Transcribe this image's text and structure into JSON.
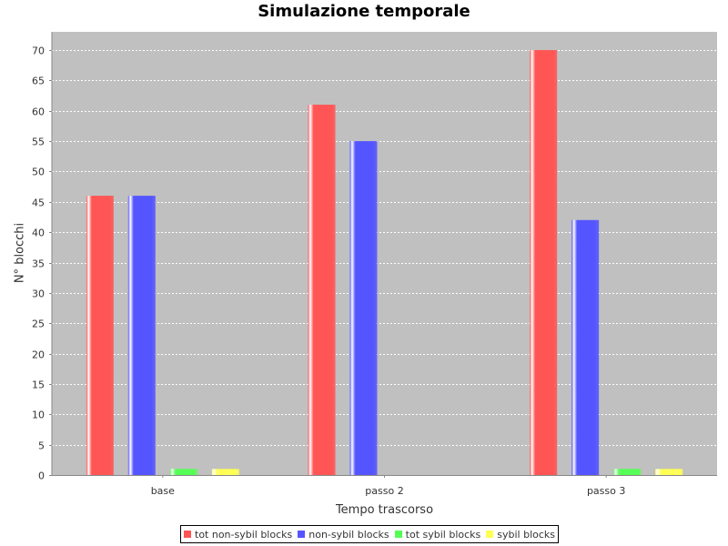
{
  "chart_data": {
    "type": "bar",
    "title": "Simulazione temporale",
    "xlabel": "Tempo trascorso",
    "ylabel": "N° blocchi",
    "categories": [
      "base",
      "passo 2",
      "passo 3"
    ],
    "series": [
      {
        "name": "tot non-sybil blocks",
        "color": "#ff5555",
        "values": [
          46,
          61,
          70
        ]
      },
      {
        "name": "non-sybil blocks",
        "color": "#5555ff",
        "values": [
          46,
          55,
          42
        ]
      },
      {
        "name": "tot sybil blocks",
        "color": "#55ff55",
        "values": [
          1,
          0,
          1
        ]
      },
      {
        "name": "sybil blocks",
        "color": "#ffff55",
        "values": [
          1,
          0,
          1
        ]
      }
    ],
    "ylim": [
      0,
      73
    ],
    "yticks": [
      0,
      5,
      10,
      15,
      20,
      25,
      30,
      35,
      40,
      45,
      50,
      55,
      60,
      65,
      70
    ],
    "grid": true,
    "legend_position": "bottom",
    "plot_background": "#c0c0c0"
  }
}
